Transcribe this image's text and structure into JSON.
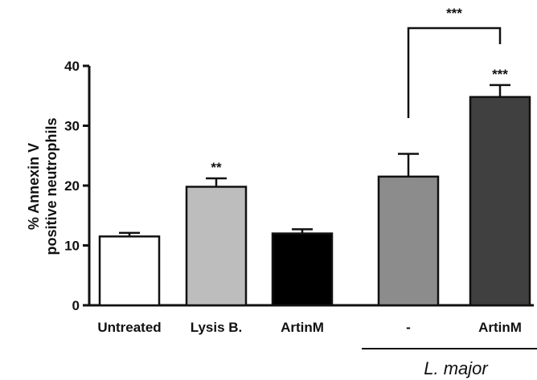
{
  "chart_data": {
    "type": "bar",
    "ylabel_line1": "% Annexin V",
    "ylabel_line2": "positive neutrophils",
    "ylim": [
      0,
      40
    ],
    "yticks": [
      "0",
      "10",
      "20",
      "30",
      "40"
    ],
    "ytick_values": [
      0,
      10,
      20,
      30,
      40
    ],
    "categories": [
      "Untreated",
      "Lysis B.",
      "ArtinM",
      "-",
      "ArtinM"
    ],
    "values": [
      11.5,
      19.8,
      12.0,
      21.5,
      34.8
    ],
    "errors": [
      0.6,
      1.4,
      0.7,
      3.8,
      2.0
    ],
    "colors": [
      "#ffffff",
      "#bdbdbd",
      "#000000",
      "#8c8c8c",
      "#404040"
    ],
    "significance": [
      "",
      "**",
      "",
      "",
      "***"
    ],
    "comparison": {
      "from_index": 3,
      "to_index": 4,
      "label": "***"
    },
    "group": {
      "label": "L. major",
      "start_index": 3,
      "end_index": 4
    }
  }
}
